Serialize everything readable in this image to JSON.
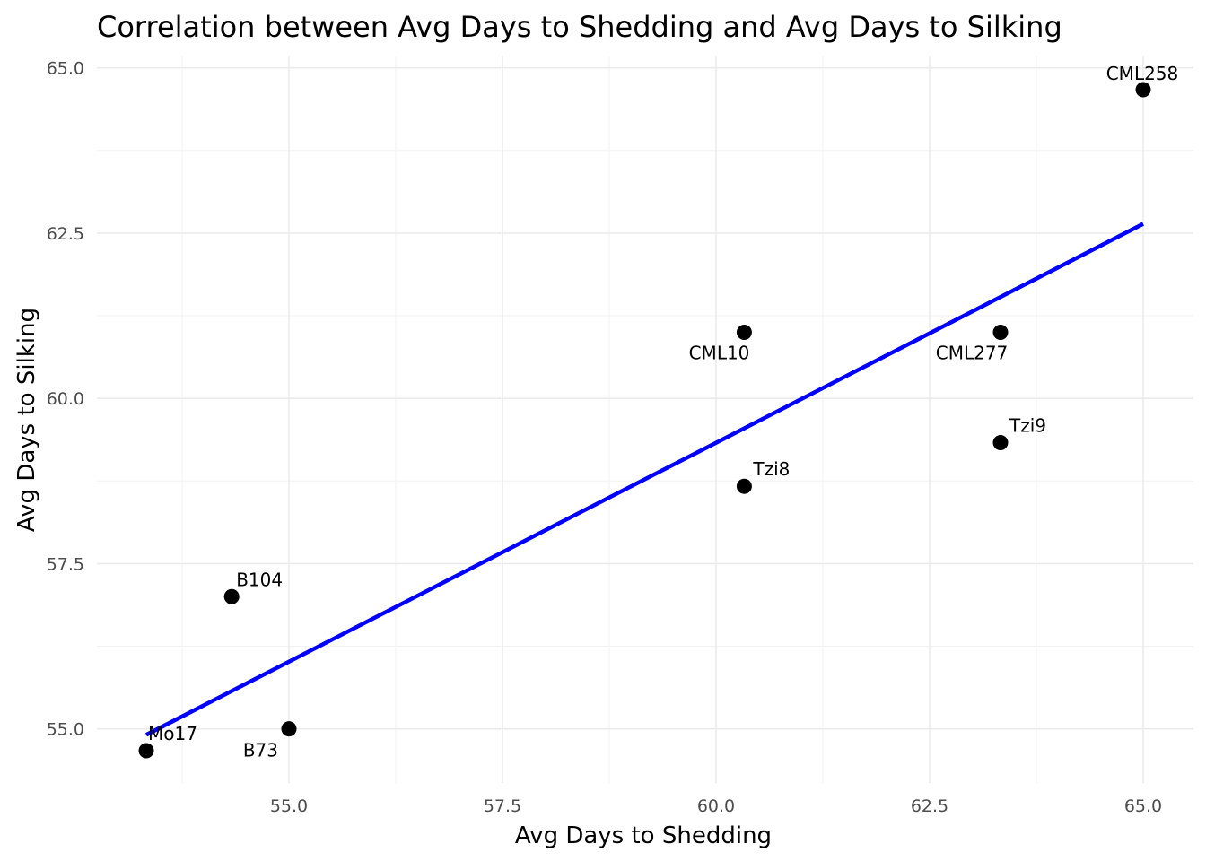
{
  "chart_data": {
    "type": "scatter",
    "title": "Correlation between Avg Days to Shedding and Avg Days to Silking",
    "xlabel": "Avg Days to Shedding",
    "ylabel": "Avg Days to Silking",
    "xlim": [
      53.35,
      65.0
    ],
    "ylim": [
      54.35,
      65.15
    ],
    "xticks": [
      "55.0",
      "57.5",
      "60.0",
      "62.5",
      "65.0"
    ],
    "yticks": [
      "55.0",
      "57.5",
      "60.0",
      "62.5",
      "65.0"
    ],
    "grid": true,
    "legend": "none",
    "colors": {
      "points": "#000000",
      "fit_line": "#0000ff"
    },
    "points": [
      {
        "label": "Mo17",
        "x": 53.33,
        "y": 54.67
      },
      {
        "label": "B104",
        "x": 54.33,
        "y": 57.0
      },
      {
        "label": "B73",
        "x": 55.0,
        "y": 55.0
      },
      {
        "label": "CML10",
        "x": 60.33,
        "y": 61.0
      },
      {
        "label": "Tzi8",
        "x": 60.33,
        "y": 58.67
      },
      {
        "label": "CML277",
        "x": 63.33,
        "y": 61.0
      },
      {
        "label": "Tzi9",
        "x": 63.33,
        "y": 59.33
      },
      {
        "label": "CML258",
        "x": 65.0,
        "y": 64.67
      }
    ],
    "fit_line": {
      "x": [
        53.33,
        65.0
      ],
      "y": [
        54.91,
        62.64
      ]
    }
  }
}
